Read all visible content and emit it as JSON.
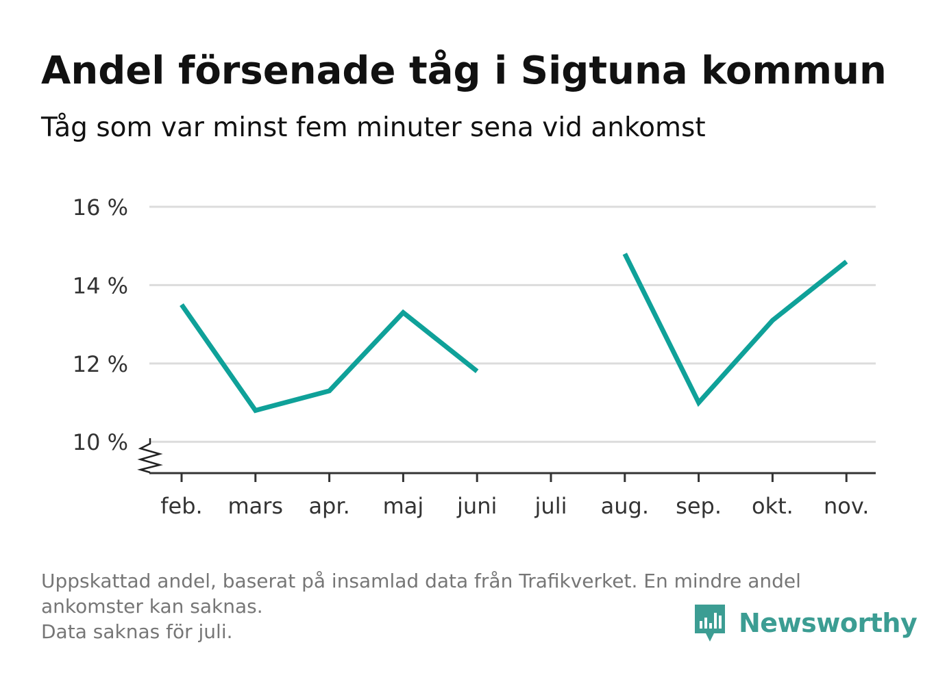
{
  "header": {
    "title": "Andel försenade tåg i Sigtuna kommun",
    "subtitle": "Tåg som var minst fem minuter sena vid ankomst"
  },
  "chart_data": {
    "type": "line",
    "categories": [
      "feb.",
      "mars",
      "apr.",
      "maj",
      "juni",
      "juli",
      "aug.",
      "sep.",
      "okt.",
      "nov."
    ],
    "series": [
      {
        "values": [
          13.5,
          10.8,
          11.3,
          13.3,
          11.8,
          null,
          14.8,
          11.0,
          13.1,
          14.6
        ]
      }
    ],
    "y_ticks": [
      10,
      12,
      14,
      16
    ],
    "y_tick_suffix": " %",
    "ylim": [
      9.2,
      16.0
    ],
    "axis_break": true,
    "grid": true,
    "line_color": "#0fa199",
    "grid_color": "#dcdcdc",
    "axis_color": "#333333"
  },
  "footnote": {
    "lines": [
      "Uppskattad andel, baserat på insamlad data från Trafikverket. En mindre andel",
      "ankomster kan saknas.",
      "Data saknas för juli."
    ]
  },
  "brand": {
    "name": "Newsworthy",
    "icon": "newsworthy-logo-icon",
    "color": "#3c9d93"
  }
}
